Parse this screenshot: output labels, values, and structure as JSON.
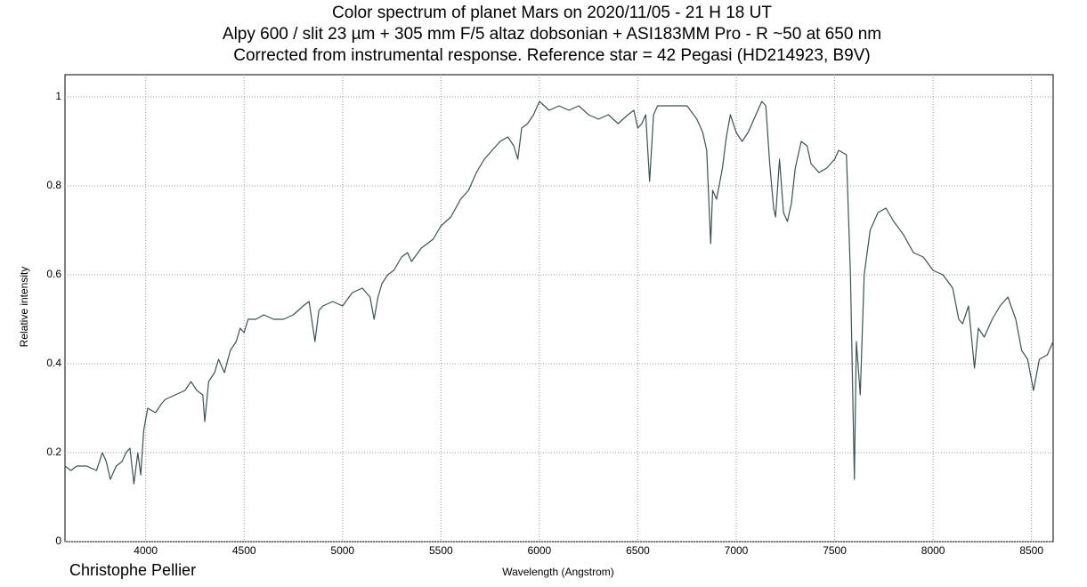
{
  "chart_data": {
    "type": "line",
    "title": [
      "Color spectrum of planet Mars on 2020/11/05 - 21 H 18 UT",
      "Alpy 600 / slit 23 µm + 305 mm F/5 altaz dobsonian + ASI183MM Pro - R ~50 at 650 nm",
      "Corrected from instrumental response. Reference star = 42 Pegasi (HD214923, B9V)"
    ],
    "x_label": "Wavelength (Angstrom)",
    "y_label": "Relative intensity",
    "annotation": "Christophe Pellier",
    "color": "#3d5252",
    "grid": true,
    "xlim": [
      3590,
      8610
    ],
    "ylim": [
      0,
      1.05
    ],
    "xticks": [
      4000,
      4500,
      5000,
      5500,
      6000,
      6500,
      7000,
      7500,
      8000,
      8500
    ],
    "yticks": [
      0,
      0.2,
      0.4,
      0.6,
      0.8,
      1
    ],
    "x": [
      3590,
      3620,
      3650,
      3700,
      3750,
      3780,
      3800,
      3820,
      3850,
      3880,
      3900,
      3920,
      3940,
      3960,
      3975,
      3990,
      4010,
      4050,
      4080,
      4100,
      4150,
      4200,
      4230,
      4260,
      4290,
      4300,
      4320,
      4350,
      4370,
      4400,
      4430,
      4460,
      4480,
      4500,
      4520,
      4560,
      4600,
      4650,
      4700,
      4750,
      4800,
      4830,
      4860,
      4880,
      4900,
      4950,
      5000,
      5050,
      5100,
      5140,
      5160,
      5180,
      5200,
      5230,
      5260,
      5300,
      5330,
      5350,
      5400,
      5430,
      5460,
      5500,
      5550,
      5600,
      5640,
      5680,
      5720,
      5760,
      5800,
      5840,
      5870,
      5890,
      5910,
      5940,
      5970,
      6000,
      6050,
      6100,
      6150,
      6200,
      6250,
      6300,
      6350,
      6400,
      6450,
      6480,
      6500,
      6520,
      6540,
      6560,
      6580,
      6600,
      6650,
      6700,
      6750,
      6800,
      6830,
      6850,
      6870,
      6880,
      6900,
      6930,
      6950,
      6970,
      7000,
      7030,
      7060,
      7100,
      7130,
      7150,
      7170,
      7190,
      7200,
      7220,
      7240,
      7260,
      7280,
      7300,
      7330,
      7360,
      7380,
      7420,
      7460,
      7500,
      7520,
      7560,
      7580,
      7600,
      7610,
      7630,
      7650,
      7680,
      7720,
      7760,
      7800,
      7850,
      7900,
      7950,
      8000,
      8050,
      8100,
      8130,
      8150,
      8180,
      8210,
      8230,
      8260,
      8300,
      8340,
      8380,
      8420,
      8450,
      8480,
      8510,
      8540,
      8580,
      8610
    ],
    "values": [
      0.17,
      0.16,
      0.17,
      0.17,
      0.16,
      0.2,
      0.18,
      0.14,
      0.17,
      0.18,
      0.2,
      0.21,
      0.13,
      0.2,
      0.15,
      0.25,
      0.3,
      0.29,
      0.31,
      0.32,
      0.33,
      0.34,
      0.36,
      0.34,
      0.33,
      0.27,
      0.36,
      0.38,
      0.41,
      0.38,
      0.43,
      0.45,
      0.48,
      0.47,
      0.5,
      0.5,
      0.51,
      0.5,
      0.5,
      0.51,
      0.53,
      0.54,
      0.45,
      0.52,
      0.53,
      0.54,
      0.53,
      0.56,
      0.57,
      0.55,
      0.5,
      0.55,
      0.58,
      0.6,
      0.61,
      0.64,
      0.65,
      0.63,
      0.66,
      0.67,
      0.68,
      0.71,
      0.73,
      0.77,
      0.79,
      0.83,
      0.86,
      0.88,
      0.9,
      0.91,
      0.89,
      0.86,
      0.93,
      0.94,
      0.96,
      0.99,
      0.97,
      0.98,
      0.97,
      0.98,
      0.96,
      0.95,
      0.96,
      0.94,
      0.96,
      0.97,
      0.93,
      0.94,
      0.96,
      0.81,
      0.96,
      0.98,
      0.98,
      0.98,
      0.98,
      0.95,
      0.92,
      0.88,
      0.67,
      0.79,
      0.77,
      0.84,
      0.91,
      0.96,
      0.92,
      0.9,
      0.92,
      0.96,
      0.99,
      0.98,
      0.85,
      0.75,
      0.73,
      0.86,
      0.74,
      0.72,
      0.76,
      0.84,
      0.9,
      0.89,
      0.85,
      0.83,
      0.84,
      0.86,
      0.88,
      0.87,
      0.6,
      0.14,
      0.45,
      0.33,
      0.6,
      0.7,
      0.74,
      0.75,
      0.72,
      0.69,
      0.65,
      0.64,
      0.61,
      0.6,
      0.57,
      0.5,
      0.49,
      0.53,
      0.39,
      0.48,
      0.46,
      0.5,
      0.53,
      0.55,
      0.5,
      0.43,
      0.41,
      0.34,
      0.41,
      0.42,
      0.45
    ]
  }
}
